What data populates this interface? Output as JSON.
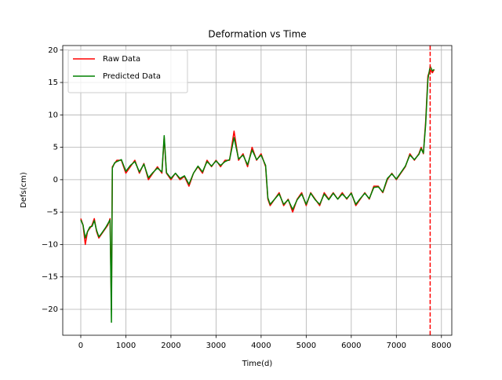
{
  "chart_data": {
    "type": "line",
    "title": "Deformation vs Time",
    "xlabel": "Time(d)",
    "ylabel": "Defs(cm)",
    "x": [
      0,
      50,
      100,
      150,
      200,
      250,
      300,
      350,
      400,
      450,
      500,
      550,
      600,
      650,
      680,
      700,
      750,
      800,
      900,
      1000,
      1100,
      1200,
      1300,
      1400,
      1500,
      1600,
      1700,
      1800,
      1850,
      1900,
      2000,
      2100,
      2200,
      2300,
      2400,
      2500,
      2600,
      2700,
      2800,
      2900,
      3000,
      3100,
      3200,
      3300,
      3400,
      3500,
      3600,
      3700,
      3800,
      3900,
      4000,
      4100,
      4150,
      4200,
      4300,
      4400,
      4500,
      4600,
      4700,
      4800,
      4900,
      5000,
      5100,
      5200,
      5300,
      5400,
      5500,
      5600,
      5700,
      5800,
      5900,
      6000,
      6100,
      6200,
      6300,
      6400,
      6500,
      6600,
      6700,
      6800,
      6900,
      7000,
      7100,
      7200,
      7300,
      7400,
      7500,
      7550,
      7600,
      7650,
      7700,
      7750,
      7800,
      7840
    ],
    "series": [
      {
        "name": "Raw Data",
        "color": "#ff0000",
        "values": [
          -6,
          -7,
          -10,
          -8,
          -7.5,
          -7,
          -6,
          -8,
          -9,
          -8.5,
          -8,
          -7.5,
          -7,
          -6,
          -20,
          2,
          2.5,
          3,
          3,
          1,
          2,
          3,
          1,
          2.5,
          0,
          1,
          2,
          1,
          6.5,
          1,
          0,
          1,
          0,
          0.5,
          -1,
          1,
          2,
          1,
          3,
          2,
          3,
          2,
          3,
          3,
          7.5,
          3,
          4,
          2,
          5,
          3,
          4,
          2,
          -3,
          -4,
          -3,
          -2,
          -4,
          -3,
          -5,
          -3,
          -2,
          -4,
          -2,
          -3,
          -4,
          -2,
          -3,
          -2,
          -3,
          -2,
          -3,
          -2,
          -4,
          -3,
          -2,
          -3,
          -1,
          -1,
          -2,
          0,
          1,
          0,
          1,
          2,
          4,
          3,
          4,
          5,
          4,
          9,
          16,
          17,
          16.5,
          17
        ]
      },
      {
        "name": "Predicted Data",
        "color": "#008000",
        "values": [
          -6.2,
          -7,
          -9,
          -8,
          -7.3,
          -7.2,
          -6.3,
          -7.8,
          -8.8,
          -8.4,
          -7.9,
          -7.4,
          -6.8,
          -6.2,
          -22,
          1.8,
          2.6,
          2.8,
          3.1,
          1.3,
          2.2,
          2.8,
          1.2,
          2.4,
          0.3,
          1.1,
          1.8,
          1.2,
          6.8,
          1.1,
          0.2,
          1,
          0.2,
          0.6,
          -0.7,
          1,
          2.1,
          1.2,
          2.8,
          2.1,
          2.9,
          2.2,
          2.8,
          3.1,
          6.5,
          3.2,
          3.8,
          2.3,
          4.6,
          3.1,
          3.8,
          2.2,
          -2.8,
          -3.8,
          -3,
          -2.2,
          -3.8,
          -3.1,
          -4.6,
          -3.1,
          -2.2,
          -3.8,
          -2.1,
          -3.1,
          -3.8,
          -2.2,
          -3.1,
          -2.1,
          -3,
          -2.2,
          -2.9,
          -2.1,
          -3.8,
          -2.9,
          -2.1,
          -2.9,
          -1.2,
          -1.1,
          -1.9,
          0.2,
          0.9,
          0.1,
          1.1,
          2.1,
          3.8,
          3.1,
          3.9,
          4.8,
          4.1,
          8.5,
          15.5,
          17.5,
          16.8,
          17
        ]
      }
    ],
    "vline": {
      "x": 7750,
      "color": "#ff0000",
      "style": "dashed"
    },
    "xlim": [
      -400,
      8230
    ],
    "ylim": [
      -24,
      20.7
    ],
    "xticks": [
      0,
      1000,
      2000,
      3000,
      4000,
      5000,
      6000,
      7000,
      8000
    ],
    "yticks": [
      {
        "value": -20,
        "label": "−20"
      },
      {
        "value": -15,
        "label": "−15"
      },
      {
        "value": -10,
        "label": "−10"
      },
      {
        "value": -5,
        "label": "−5"
      },
      0,
      5,
      10,
      15,
      20
    ],
    "grid": true,
    "legend": "upper-left"
  }
}
